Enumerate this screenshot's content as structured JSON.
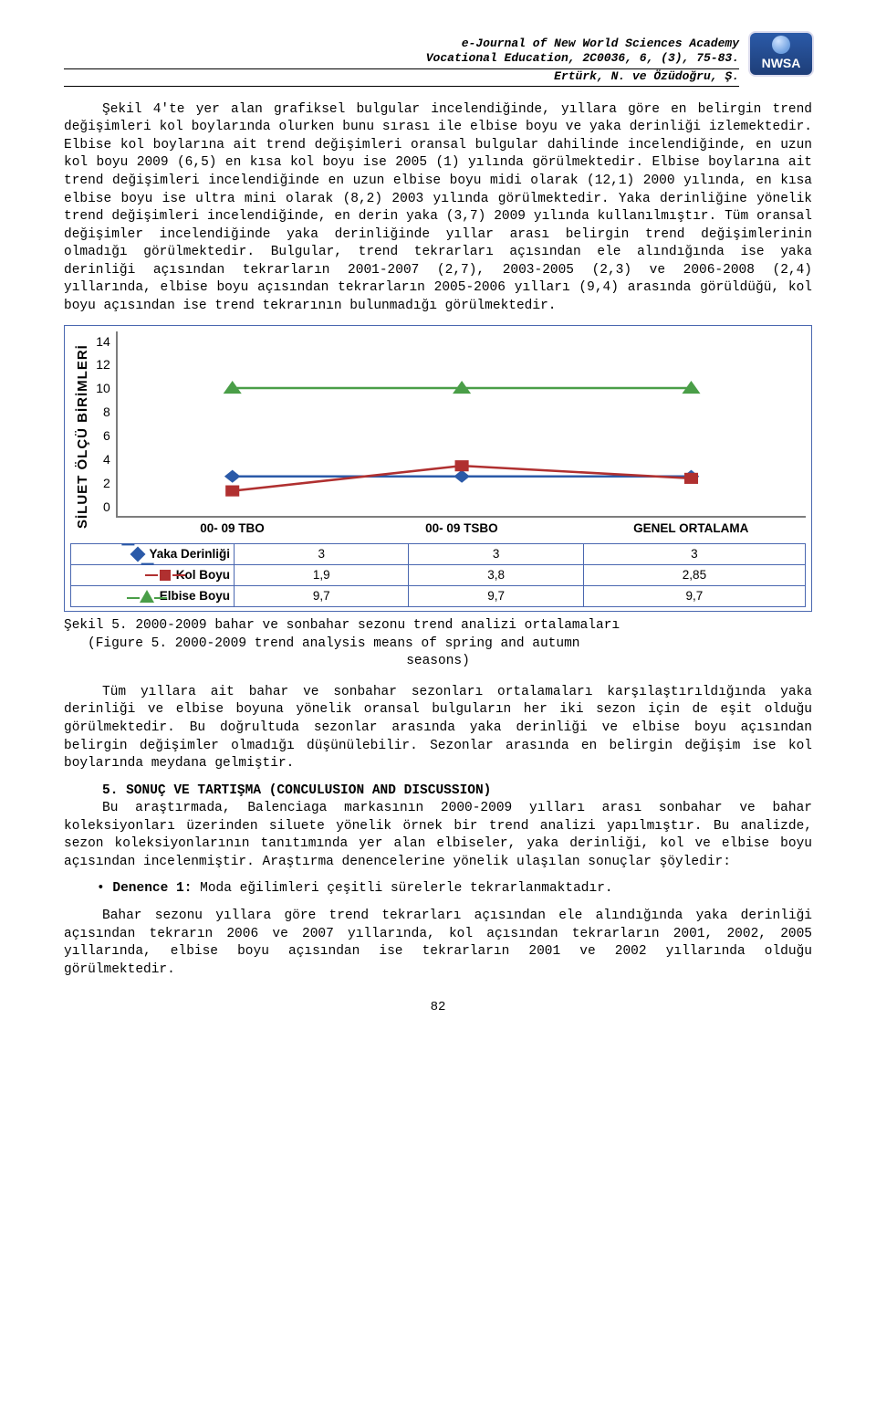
{
  "header": {
    "line1": "e-Journal of New World Sciences Academy",
    "line2": "Vocational Education, 2C0036, 6, (3), 75-83.",
    "line3": "Ertürk, N. ve Özüdoğru, Ş.",
    "logo_text": "NWSA"
  },
  "para1": "Şekil 4'te yer alan grafiksel bulgular incelendiğinde, yıllara göre en belirgin trend değişimleri kol boylarında olurken bunu sırası ile elbise boyu ve yaka derinliği izlemektedir. Elbise kol boylarına ait trend değişimleri oransal bulgular dahilinde incelendiğinde, en uzun kol boyu 2009 (6,5) en kısa kol boyu ise 2005 (1) yılında görülmektedir. Elbise boylarına ait trend değişimleri incelendiğinde en uzun elbise boyu midi olarak (12,1) 2000 yılında, en kısa elbise boyu ise ultra mini olarak (8,2) 2003 yılında görülmektedir. Yaka derinliğine yönelik trend değişimleri incelendiğinde, en derin yaka (3,7) 2009 yılında kullanılmıştır. Tüm oransal değişimler incelendiğinde yaka derinliğinde yıllar arası belirgin trend değişimlerinin olmadığı görülmektedir. Bulgular, trend tekrarları açısından ele alındığında ise yaka derinliği açısından tekrarların 2001-2007 (2,7), 2003-2005 (2,3) ve 2006-2008 (2,4) yıllarında, elbise boyu açısından tekrarların 2005-2006 yılları (9,4) arasında görüldüğü, kol boyu açısından ise trend tekrarının bulunmadığı görülmektedir.",
  "chart": {
    "y_label": "SİLUET ÖLÇÜ BİRİMLERİ",
    "y_ticks": [
      "14",
      "12",
      "10",
      "8",
      "6",
      "4",
      "2",
      "0"
    ],
    "y_max": 14,
    "categories": [
      "00- 09 TBO",
      "00- 09 TSBO",
      "GENEL ORTALAMA"
    ],
    "series": [
      {
        "name": "Yaka Derinliği",
        "marker": "diamond",
        "color": "#2b5aa8",
        "values": [
          3,
          3,
          3
        ]
      },
      {
        "name": "Kol Boyu",
        "marker": "square",
        "color": "#b03030",
        "values": [
          1.9,
          3.8,
          2.85
        ]
      },
      {
        "name": "Elbise Boyu",
        "marker": "triangle",
        "color": "#4a9e48",
        "values": [
          9.7,
          9.7,
          9.7
        ]
      }
    ],
    "legend_rows": [
      {
        "label": "Yaka Derinliği",
        "v": [
          "3",
          "3",
          "3"
        ]
      },
      {
        "label": "Kol Boyu",
        "v": [
          "1,9",
          "3,8",
          "2,85"
        ]
      },
      {
        "label": "Elbise Boyu",
        "v": [
          "9,7",
          "9,7",
          "9,7"
        ]
      }
    ]
  },
  "caption": {
    "l1": "Şekil 5. 2000-2009 bahar ve sonbahar sezonu trend analizi ortalamaları",
    "l2": "(Figure 5. 2000-2009 trend analysis means of spring and autumn",
    "l3": "seasons)"
  },
  "para2": "Tüm yıllara ait bahar ve sonbahar sezonları ortalamaları karşılaştırıldığında yaka derinliği ve elbise boyuna yönelik oransal bulguların her iki sezon için de eşit olduğu görülmektedir. Bu doğrultuda sezonlar arasında yaka derinliği ve elbise boyu açısından belirgin değişimler olmadığı düşünülebilir. Sezonlar arasında en belirgin değişim ise kol boylarında meydana gelmiştir.",
  "section5": {
    "heading": "5. SONUÇ VE TARTIŞMA (CONCULUSION AND DISCUSSION)",
    "p1": "Bu araştırmada, Balenciaga markasının 2000-2009 yılları arası sonbahar ve bahar koleksiyonları üzerinden siluete yönelik örnek bir trend analizi yapılmıştır. Bu analizde, sezon koleksiyonlarının tanıtımında yer alan elbiseler, yaka derinliği, kol ve elbise boyu açısından incelenmiştir. Araştırma denencelerine yönelik ulaşılan sonuçlar şöyledir:",
    "bullet_strong": "Denence 1:",
    "bullet_rest": " Moda eğilimleri çeşitli sürelerle tekrarlanmaktadır.",
    "p2": "Bahar sezonu yıllara göre trend tekrarları açısından ele alındığında yaka derinliği açısından tekrarın 2006 ve 2007 yıllarında, kol açısından tekrarların 2001, 2002, 2005 yıllarında, elbise boyu açısından ise tekrarların 2001 ve 2002 yıllarında olduğu görülmektedir."
  },
  "page_number": "82"
}
